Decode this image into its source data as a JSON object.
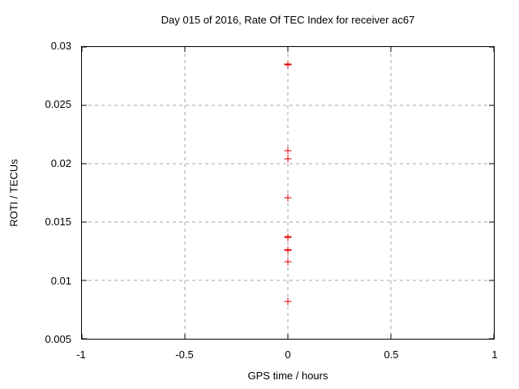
{
  "chart_data": {
    "type": "scatter",
    "title": "Day 015 of 2016, Rate Of TEC Index for receiver ac67",
    "xlabel": "GPS time / hours",
    "ylabel": "ROTI / TECUs",
    "xlim": [
      -1,
      1
    ],
    "ylim": [
      0.005,
      0.03
    ],
    "xticks": [
      -1,
      -0.5,
      0,
      0.5,
      1
    ],
    "xtick_labels": [
      "-1",
      "-0.5",
      "0",
      "0.5",
      "1"
    ],
    "yticks": [
      0.005,
      0.01,
      0.015,
      0.02,
      0.025,
      0.03
    ],
    "ytick_labels": [
      "0.005",
      "0.01",
      "0.015",
      "0.02",
      "0.025",
      "0.03"
    ],
    "grid": true,
    "legend_position": "none",
    "marker": {
      "shape": "plus",
      "size": 9,
      "color": "#e00000"
    },
    "series": [
      {
        "name": "ROTI",
        "points": [
          {
            "x": 0,
            "y": 0.0285
          },
          {
            "x": 0,
            "y": 0.0211
          },
          {
            "x": 0,
            "y": 0.0204
          },
          {
            "x": 0,
            "y": 0.0171
          },
          {
            "x": 0,
            "y": 0.0137
          },
          {
            "x": 0,
            "y": 0.0126
          },
          {
            "x": 0,
            "y": 0.0116
          },
          {
            "x": 0,
            "y": 0.0082
          }
        ]
      }
    ]
  },
  "colors": {
    "marker": "#e00000",
    "grid": "#a6a6a6",
    "border": "#000000",
    "text": "#000000",
    "background": "#ffffff"
  }
}
